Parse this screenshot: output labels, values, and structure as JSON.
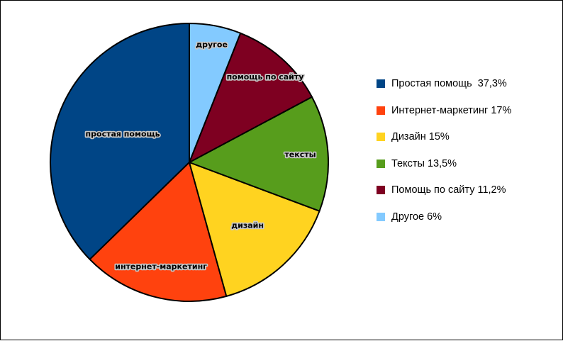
{
  "chart_data": {
    "type": "pie",
    "title": "",
    "start": "top",
    "direction": "counterclockwise",
    "slices": [
      {
        "label": "простая помощь",
        "value": 37.3,
        "color": "#004586"
      },
      {
        "label": "интернет-маркетинг",
        "value": 17,
        "color": "#FF420E"
      },
      {
        "label": "дизайн",
        "value": 15,
        "color": "#FFD320"
      },
      {
        "label": "тексты",
        "value": 13.5,
        "color": "#579D1C"
      },
      {
        "label": "помощь по сайту",
        "value": 11.2,
        "color": "#7E0021"
      },
      {
        "label": "другое",
        "value": 6,
        "color": "#83CAFF"
      }
    ],
    "legend": {
      "position": "right",
      "entries": [
        {
          "label": "Простая помощь  37,3%",
          "color": "#004586"
        },
        {
          "label": "Интернет-маркетинг 17%",
          "color": "#FF420E"
        },
        {
          "label": "Дизайн 15%",
          "color": "#FFD320"
        },
        {
          "label": "Тексты 13,5%",
          "color": "#579D1C"
        },
        {
          "label": "Помощь по сайту 11,2%",
          "color": "#7E0021"
        },
        {
          "label": "Другое 6%",
          "color": "#83CAFF"
        }
      ]
    }
  }
}
